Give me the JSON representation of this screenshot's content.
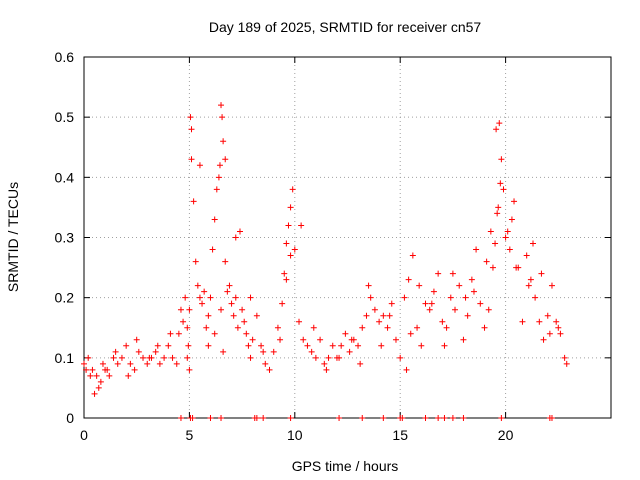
{
  "chart_data": {
    "type": "scatter",
    "title": "Day 189 of 2025, SRMTID for receiver cn57",
    "xlabel": "GPS time / hours",
    "ylabel": "SRMTID / TECUs",
    "xlim": [
      0,
      25
    ],
    "ylim": [
      0,
      0.6
    ],
    "xticks": [
      0,
      5,
      10,
      15,
      20
    ],
    "yticks": [
      0,
      0.1,
      0.2,
      0.3,
      0.4,
      0.5,
      0.6
    ],
    "xtick_labels": [
      "0",
      "5",
      "10",
      "15",
      "20"
    ],
    "ytick_labels": [
      "0",
      "0.1",
      "0.2",
      "0.3",
      "0.4",
      "0.5",
      "0.6"
    ],
    "grid": true,
    "marker": "+",
    "color": "#ff0000",
    "series": [
      {
        "name": "SRMTID",
        "x": [
          0.0,
          0.2,
          0.4,
          0.6,
          0.8,
          1.0,
          1.2,
          1.4,
          1.6,
          1.8,
          2.0,
          2.2,
          2.4,
          2.6,
          2.8,
          3.0,
          3.2,
          3.4,
          3.6,
          3.8,
          4.0,
          4.2,
          4.4,
          4.5,
          4.6,
          4.7,
          4.8,
          4.9,
          4.95,
          5.0,
          5.05,
          5.1,
          5.2,
          5.3,
          5.4,
          5.5,
          5.6,
          5.7,
          5.8,
          5.9,
          6.0,
          6.1,
          6.2,
          6.3,
          6.4,
          6.45,
          6.5,
          6.55,
          6.6,
          6.7,
          6.8,
          6.9,
          7.0,
          7.1,
          7.2,
          7.3,
          7.4,
          7.5,
          7.6,
          7.7,
          7.8,
          7.9,
          8.0,
          8.2,
          8.4,
          8.6,
          8.8,
          9.0,
          9.2,
          9.4,
          9.5,
          9.6,
          9.7,
          9.8,
          9.9,
          10.0,
          10.2,
          10.4,
          10.6,
          10.8,
          11.0,
          11.2,
          11.4,
          11.6,
          11.8,
          12.0,
          12.2,
          12.4,
          12.6,
          12.8,
          13.0,
          13.2,
          13.4,
          13.6,
          13.8,
          14.0,
          14.2,
          14.4,
          14.6,
          14.8,
          15.0,
          15.2,
          15.4,
          15.6,
          15.8,
          16.0,
          16.2,
          16.4,
          16.6,
          16.8,
          17.0,
          17.2,
          17.4,
          17.6,
          17.8,
          18.0,
          18.2,
          18.4,
          18.6,
          18.8,
          19.0,
          19.2,
          19.4,
          19.5,
          19.6,
          19.7,
          19.8,
          19.9,
          20.0,
          20.2,
          20.4,
          20.6,
          20.8,
          21.0,
          21.2,
          21.4,
          21.6,
          21.8,
          22.0,
          22.2,
          22.4,
          22.6,
          22.8,
          22.9,
          0.1,
          0.3,
          0.5,
          0.7,
          0.9,
          1.1,
          1.5,
          2.1,
          2.5,
          3.1,
          3.5,
          4.1,
          4.9,
          5.0,
          5.1,
          5.5,
          5.9,
          6.2,
          6.5,
          6.6,
          6.7,
          7.2,
          7.9,
          8.5,
          9.3,
          9.6,
          9.8,
          10.3,
          10.9,
          11.5,
          12.1,
          12.7,
          13.1,
          13.5,
          14.1,
          14.5,
          15.3,
          15.5,
          15.9,
          16.5,
          17.1,
          17.5,
          18.1,
          18.5,
          19.1,
          19.3,
          19.55,
          19.65,
          19.75,
          20.1,
          20.3,
          20.5,
          21.1,
          21.3,
          21.7,
          22.1,
          22.5
        ],
        "y": [
          0.09,
          0.1,
          0.08,
          0.07,
          0.06,
          0.08,
          0.07,
          0.1,
          0.09,
          0.1,
          0.12,
          0.09,
          0.08,
          0.11,
          0.1,
          0.09,
          0.1,
          0.11,
          0.09,
          0.1,
          0.12,
          0.1,
          0.09,
          0.14,
          0.18,
          0.16,
          0.2,
          0.15,
          0.12,
          0.18,
          0.5,
          0.43,
          0.36,
          0.26,
          0.22,
          0.2,
          0.19,
          0.21,
          0.15,
          0.12,
          0.2,
          0.28,
          0.33,
          0.38,
          0.4,
          0.42,
          0.52,
          0.5,
          0.46,
          0.26,
          0.21,
          0.22,
          0.19,
          0.17,
          0.2,
          0.15,
          0.31,
          0.18,
          0.16,
          0.14,
          0.12,
          0.1,
          0.13,
          0.17,
          0.12,
          0.09,
          0.08,
          0.11,
          0.15,
          0.19,
          0.24,
          0.29,
          0.32,
          0.35,
          0.38,
          0.28,
          0.16,
          0.13,
          0.12,
          0.11,
          0.1,
          0.13,
          0.09,
          0.1,
          0.12,
          0.1,
          0.12,
          0.14,
          0.11,
          0.13,
          0.12,
          0.15,
          0.17,
          0.2,
          0.18,
          0.16,
          0.17,
          0.15,
          0.19,
          0.13,
          0.1,
          0.2,
          0.23,
          0.27,
          0.15,
          0.12,
          0.19,
          0.18,
          0.21,
          0.24,
          0.16,
          0.15,
          0.2,
          0.18,
          0.22,
          0.13,
          0.17,
          0.23,
          0.28,
          0.19,
          0.15,
          0.18,
          0.25,
          0.29,
          0.34,
          0.49,
          0.43,
          0.38,
          0.3,
          0.28,
          0.36,
          0.25,
          0.16,
          0.27,
          0.23,
          0.2,
          0.16,
          0.13,
          0.17,
          0.22,
          0.16,
          0.14,
          0.1,
          0.09,
          0.08,
          0.07,
          0.04,
          0.05,
          0.09,
          0.08,
          0.11,
          0.07,
          0.13,
          0.1,
          0.12,
          0.14,
          0.1,
          0.08,
          0.48,
          0.42,
          0.17,
          0.14,
          0.18,
          0.11,
          0.43,
          0.3,
          0.2,
          0.11,
          0.13,
          0.23,
          0.27,
          0.32,
          0.15,
          0.08,
          0.1,
          0.13,
          0.09,
          0.22,
          0.12,
          0.17,
          0.08,
          0.14,
          0.22,
          0.19,
          0.12,
          0.24,
          0.2,
          0.21,
          0.26,
          0.31,
          0.48,
          0.35,
          0.39,
          0.31,
          0.33,
          0.25,
          0.22,
          0.29,
          0.24,
          0.14,
          0.15
        ]
      }
    ],
    "baseline_x": [
      4.6,
      5.05,
      5.15,
      6.0,
      6.5,
      8.1,
      8.2,
      8.5,
      9.8,
      12.1,
      13.2,
      14.2,
      15.0,
      15.1,
      16.2,
      16.8,
      17.1,
      17.5,
      18.0,
      19.8,
      22.1,
      22.2
    ]
  }
}
